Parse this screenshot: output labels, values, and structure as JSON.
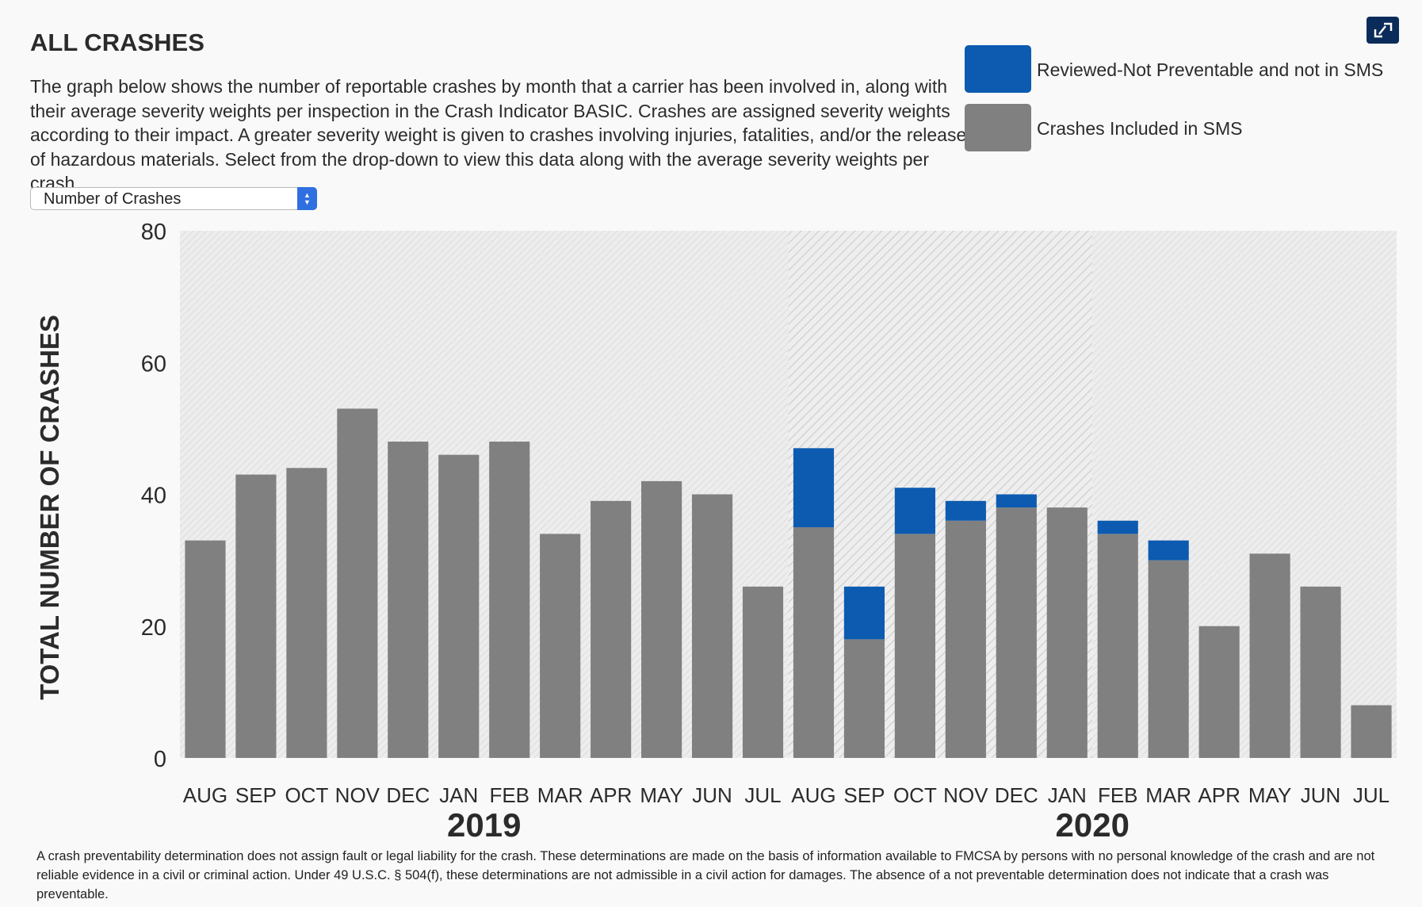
{
  "header": {
    "title": "ALL CRASHES",
    "description": "The graph below shows the number of reportable crashes by month that a carrier has been involved in, along with their average severity weights per inspection in the Crash Indicator BASIC. Crashes are assigned severity weights according to their impact. A greater severity weight is given to crashes involving injuries, fatalities, and/or the release of hazardous materials. Select from the drop-down to view this data along with the average severity weights per crash."
  },
  "select": {
    "value": "Number of Crashes"
  },
  "expand_icon": "collapse-arrows-icon",
  "colors": {
    "included": "#808080",
    "reviewed": "#0c5bb0",
    "plot_bg": "#ececec",
    "hatch": "#d8d8d8"
  },
  "legend": [
    {
      "label": "Reviewed-Not Preventable and not in SMS",
      "color": "#0c5bb0"
    },
    {
      "label": "Crashes Included in SMS",
      "color": "#808080"
    }
  ],
  "chart_data": {
    "type": "bar",
    "stacked": true,
    "ylabel": "TOTAL NUMBER OF CRASHES",
    "ylim": [
      0,
      80
    ],
    "yticks": [
      0,
      20,
      40,
      60,
      80
    ],
    "grid": false,
    "legend_position": "top-right",
    "categories": [
      "AUG",
      "SEP",
      "OCT",
      "NOV",
      "DEC",
      "JAN",
      "FEB",
      "MAR",
      "APR",
      "MAY",
      "JUN",
      "JUL",
      "AUG",
      "SEP",
      "OCT",
      "NOV",
      "DEC",
      "JAN",
      "FEB",
      "MAR",
      "APR",
      "MAY",
      "JUN",
      "JUL"
    ],
    "year_labels": [
      {
        "label": "2019",
        "start_index": 0,
        "end_index": 11
      },
      {
        "label": "2020",
        "start_index": 12,
        "end_index": 23
      }
    ],
    "series": [
      {
        "name": "Crashes Included in SMS",
        "values": [
          33,
          43,
          44,
          53,
          48,
          46,
          48,
          34,
          39,
          42,
          40,
          26,
          35,
          18,
          34,
          36,
          38,
          38,
          34,
          30,
          20,
          31,
          26,
          8
        ]
      },
      {
        "name": "Reviewed-Not Preventable and not in SMS",
        "values": [
          0,
          0,
          0,
          0,
          0,
          0,
          0,
          0,
          0,
          0,
          0,
          0,
          12,
          8,
          7,
          3,
          2,
          0,
          2,
          3,
          0,
          0,
          0,
          0
        ]
      }
    ]
  },
  "footnote": "A crash preventability determination does not assign fault or legal liability for the crash. These determinations are made on the basis of information available to FMCSA by persons with no personal knowledge of the crash and are not reliable evidence in a civil or criminal action. Under 49 U.S.C. § 504(f), these determinations are not admissible in a civil action for damages. The absence of a not preventable determination does not indicate that a crash was preventable."
}
